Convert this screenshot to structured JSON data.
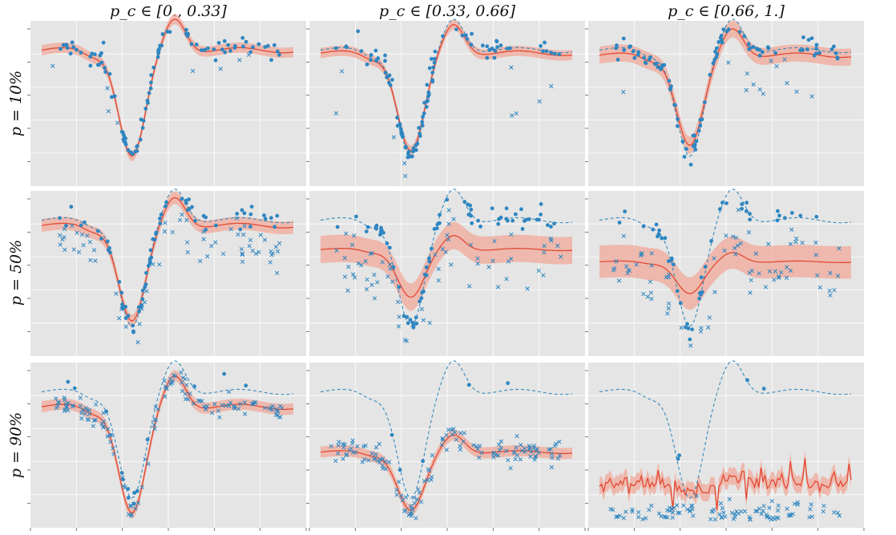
{
  "figure": {
    "column_titles": [
      "p_c ∈ [0., 0.33]",
      "p_c ∈ [0.33, 0.66]",
      "p_c ∈ [0.66, 1.]"
    ],
    "row_titles": [
      "p = 10%",
      "p = 50%",
      "p = 90%"
    ]
  },
  "colors": {
    "panel_bg": "#e5e5e5",
    "grid": "#ffffff",
    "truth_line": "#348abd",
    "mean_line": "#e24a33",
    "band_fill": "#f0a89a",
    "clean_points": "#2e86c1",
    "corrupt_points": "#2e86c1"
  },
  "chart_data": [
    {
      "type": "scatter",
      "row": 0,
      "col": 0,
      "p_percent": 10,
      "pc_range": [
        0.0,
        0.33
      ],
      "grid": true,
      "xlim": [
        0,
        1
      ],
      "ylim": [
        -2.0,
        1.5
      ],
      "truth_function": "y = sin-like wave with trough near x=0.37 and peak near x=0.53",
      "fit": {
        "offset": 0.0,
        "shrink": 1.0,
        "band_halfwidth": 0.12
      },
      "points": {
        "clean_count": 110,
        "corrupt_count": 8
      }
    },
    {
      "type": "scatter",
      "row": 0,
      "col": 1,
      "p_percent": 10,
      "pc_range": [
        0.33,
        0.66
      ],
      "grid": true,
      "xlim": [
        0,
        1
      ],
      "ylim": [
        -2.0,
        1.5
      ],
      "fit": {
        "offset": -0.05,
        "shrink": 0.92,
        "band_halfwidth": 0.12
      },
      "points": {
        "clean_count": 110,
        "corrupt_count": 12
      }
    },
    {
      "type": "scatter",
      "row": 0,
      "col": 2,
      "p_percent": 10,
      "pc_range": [
        0.66,
        1.0
      ],
      "grid": true,
      "xlim": [
        0,
        1
      ],
      "ylim": [
        -2.0,
        1.5
      ],
      "fit": {
        "offset": -0.08,
        "shrink": 0.85,
        "band_halfwidth": 0.2
      },
      "points": {
        "clean_count": 110,
        "corrupt_count": 14
      }
    },
    {
      "type": "scatter",
      "row": 1,
      "col": 0,
      "p_percent": 50,
      "pc_range": [
        0.0,
        0.33
      ],
      "grid": true,
      "xlim": [
        0,
        1
      ],
      "ylim": [
        -2.0,
        1.5
      ],
      "fit": {
        "offset": -0.1,
        "shrink": 0.9,
        "band_halfwidth": 0.15
      },
      "points": {
        "clean_count": 80,
        "corrupt_count": 70
      }
    },
    {
      "type": "scatter",
      "row": 1,
      "col": 1,
      "p_percent": 50,
      "pc_range": [
        0.33,
        0.66
      ],
      "grid": true,
      "xlim": [
        0,
        1
      ],
      "ylim": [
        -2.0,
        1.5
      ],
      "fit": {
        "offset": -0.55,
        "shrink": 0.45,
        "band_halfwidth": 0.32
      },
      "points": {
        "clean_count": 75,
        "corrupt_count": 75
      }
    },
    {
      "type": "scatter",
      "row": 1,
      "col": 2,
      "p_percent": 50,
      "pc_range": [
        0.66,
        1.0
      ],
      "grid": true,
      "xlim": [
        0,
        1
      ],
      "ylim": [
        -2.0,
        1.5
      ],
      "fit": {
        "offset": -0.8,
        "shrink": 0.3,
        "band_halfwidth": 0.38
      },
      "points": {
        "clean_count": 50,
        "corrupt_count": 85
      }
    },
    {
      "type": "scatter",
      "row": 2,
      "col": 0,
      "p_percent": 90,
      "pc_range": [
        0.0,
        0.33
      ],
      "grid": true,
      "xlim": [
        0,
        1
      ],
      "ylim": [
        -2.0,
        1.5
      ],
      "fit": {
        "offset": -0.35,
        "shrink": 1.0,
        "band_halfwidth": 0.13
      },
      "points": {
        "clean_count": 15,
        "corrupt_count": 130
      }
    },
    {
      "type": "scatter",
      "row": 2,
      "col": 1,
      "p_percent": 90,
      "pc_range": [
        0.33,
        0.66
      ],
      "grid": true,
      "xlim": [
        0,
        1
      ],
      "ylim": [
        -2.0,
        1.5
      ],
      "fit": {
        "offset": -1.3,
        "shrink": 0.55,
        "band_halfwidth": 0.13
      },
      "points": {
        "clean_count": 6,
        "corrupt_count": 135
      }
    },
    {
      "type": "scatter",
      "row": 2,
      "col": 2,
      "p_percent": 90,
      "pc_range": [
        0.66,
        1.0
      ],
      "grid": true,
      "xlim": [
        0,
        1
      ],
      "ylim": [
        -2.0,
        1.5
      ],
      "fit": {
        "offset": -1.9,
        "shrink": 0.1,
        "band_halfwidth": 0.2
      },
      "points": {
        "clean_count": 5,
        "corrupt_count": 140
      }
    }
  ]
}
